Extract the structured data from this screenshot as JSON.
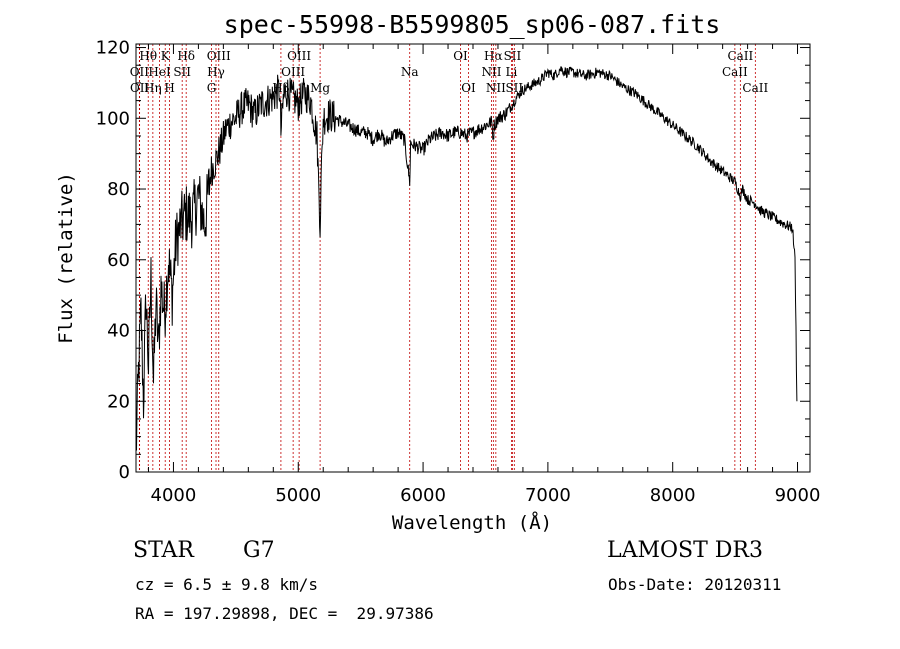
{
  "chart_data": {
    "type": "line",
    "title": "spec-55998-B5599805_sp06-087.fits",
    "xlabel": "Wavelength (Å)",
    "ylabel": "Flux (relative)",
    "xlim": [
      3700,
      9100
    ],
    "ylim": [
      0,
      121
    ],
    "xticks": [
      4000,
      5000,
      6000,
      7000,
      8000,
      9000
    ],
    "yticks": [
      0,
      20,
      40,
      60,
      80,
      100,
      120
    ],
    "grid": false,
    "series": [
      {
        "name": "flux",
        "x": [
          3700,
          3720,
          3740,
          3760,
          3780,
          3800,
          3820,
          3840,
          3860,
          3880,
          3900,
          3930,
          3960,
          3990,
          4020,
          4060,
          4100,
          4150,
          4200,
          4250,
          4300,
          4340,
          4380,
          4420,
          4460,
          4500,
          4550,
          4600,
          4650,
          4700,
          4750,
          4800,
          4850,
          4861,
          4880,
          4900,
          4950,
          5000,
          5050,
          5100,
          5150,
          5175,
          5183,
          5200,
          5250,
          5300,
          5350,
          5400,
          5450,
          5500,
          5550,
          5600,
          5650,
          5700,
          5750,
          5800,
          5850,
          5893,
          5900,
          5950,
          6000,
          6050,
          6100,
          6150,
          6200,
          6250,
          6300,
          6350,
          6400,
          6450,
          6500,
          6550,
          6563,
          6570,
          6600,
          6650,
          6700,
          6750,
          6800,
          6850,
          6900,
          6950,
          7000,
          7050,
          7100,
          7150,
          7200,
          7300,
          7400,
          7500,
          7600,
          7700,
          7800,
          7900,
          8000,
          8100,
          8200,
          8300,
          8400,
          8500,
          8542,
          8560,
          8600,
          8662,
          8700,
          8800,
          8900,
          8960,
          8980,
          8995
        ],
        "values": [
          5,
          28,
          45,
          20,
          50,
          30,
          55,
          25,
          48,
          35,
          52,
          45,
          60,
          50,
          65,
          70,
          73,
          72,
          78,
          70,
          85,
          88,
          92,
          97,
          99,
          100,
          103,
          104,
          101,
          104,
          105,
          106,
          108,
          96,
          105,
          108,
          106,
          104,
          107,
          105,
          95,
          70,
          82,
          100,
          101,
          100,
          99,
          98,
          97,
          96,
          96,
          94,
          96,
          93,
          95,
          96,
          94,
          82,
          93,
          92,
          91,
          94,
          95,
          96,
          95,
          96,
          96,
          95,
          96,
          97,
          98,
          99,
          94,
          98,
          100,
          101,
          103,
          106,
          108,
          109,
          110,
          111,
          113,
          112,
          114,
          113,
          113,
          112,
          113,
          112,
          109,
          107,
          104,
          101,
          98,
          95,
          92,
          88,
          85,
          82,
          78,
          80,
          77,
          76,
          74,
          72,
          70,
          69,
          60,
          20
        ]
      }
    ],
    "lines": [
      {
        "label": "Hθ",
        "wl": 3798,
        "row": 1
      },
      {
        "label": "OII",
        "wl": 3727,
        "row": 2
      },
      {
        "label": "OII",
        "wl": 3729,
        "row": 3
      },
      {
        "label": "Hη",
        "wl": 3835,
        "row": 3
      },
      {
        "label": "HeI",
        "wl": 3889,
        "row": 2
      },
      {
        "label": "K",
        "wl": 3934,
        "row": 1
      },
      {
        "label": "H",
        "wl": 3969,
        "row": 3
      },
      {
        "label": "SII",
        "wl": 4070,
        "row": 2
      },
      {
        "label": "Hδ",
        "wl": 4102,
        "row": 1
      },
      {
        "label": "OIII",
        "wl": 4363,
        "row": 1
      },
      {
        "label": "Hγ",
        "wl": 4341,
        "row": 2
      },
      {
        "label": "G",
        "wl": 4305,
        "row": 3
      },
      {
        "label": "OIII",
        "wl": 5007,
        "row": 1
      },
      {
        "label": "OIII",
        "wl": 4959,
        "row": 2
      },
      {
        "label": "Hβ",
        "wl": 4861,
        "row": 3
      },
      {
        "label": "Mg",
        "wl": 5175,
        "row": 3
      },
      {
        "label": "Na",
        "wl": 5893,
        "row": 2
      },
      {
        "label": "OI",
        "wl": 6300,
        "row": 1
      },
      {
        "label": "OI",
        "wl": 6364,
        "row": 3
      },
      {
        "label": "Hα",
        "wl": 6563,
        "row": 1
      },
      {
        "label": "NII",
        "wl": 6548,
        "row": 2
      },
      {
        "label": "NII",
        "wl": 6583,
        "row": 3
      },
      {
        "label": "SII",
        "wl": 6716,
        "row": 1
      },
      {
        "label": "Li",
        "wl": 6708,
        "row": 2
      },
      {
        "label": "SII",
        "wl": 6731,
        "row": 3
      },
      {
        "label": "CaII",
        "wl": 8542,
        "row": 1
      },
      {
        "label": "CaII",
        "wl": 8498,
        "row": 2
      },
      {
        "label": "CaII",
        "wl": 8662,
        "row": 3
      }
    ]
  },
  "info": {
    "object_type": "STAR",
    "subclass": "G7",
    "survey": "LAMOST DR3",
    "cz": "cz = 6.5 ± 9.8 km/s",
    "obs_date": "Obs-Date: 20120311",
    "coords": "RA = 197.29898, DEC =  29.97386"
  },
  "colors": {
    "axis": "#000000",
    "spectrum": "#000000",
    "line_marker": "#c00000"
  }
}
